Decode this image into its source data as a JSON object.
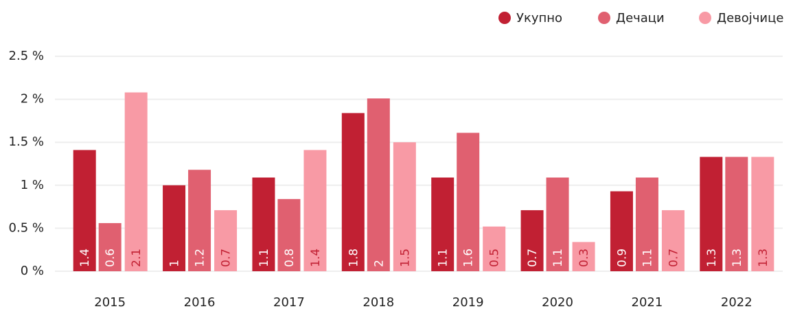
{
  "chart_data": {
    "type": "bar",
    "categories": [
      "2015",
      "2016",
      "2017",
      "2018",
      "2019",
      "2020",
      "2021",
      "2022"
    ],
    "series": [
      {
        "name": "Укупно",
        "color": "#c12033",
        "values": [
          1.41,
          1.0,
          1.09,
          1.84,
          1.09,
          0.71,
          0.93,
          1.33
        ],
        "value_labels": [
          "1.4",
          "1",
          "1.1",
          "1.8",
          "1.1",
          "0.7",
          "0.9",
          "1.3"
        ]
      },
      {
        "name": "Дечаци",
        "color": "#e06070",
        "values": [
          0.56,
          1.18,
          0.84,
          2.01,
          1.61,
          1.09,
          1.09,
          1.33
        ],
        "value_labels": [
          "0.6",
          "1.2",
          "0.8",
          "2",
          "1.6",
          "1.1",
          "1.1",
          "1.3"
        ]
      },
      {
        "name": "Девојчице",
        "color": "#f89aa5",
        "values": [
          2.08,
          0.71,
          1.41,
          1.5,
          0.52,
          0.34,
          0.71,
          1.33
        ],
        "value_labels": [
          "2.1",
          "0.7",
          "1.4",
          "1.5",
          "0.5",
          "0.3",
          "0.7",
          "1.3"
        ]
      }
    ],
    "ylim": [
      0,
      2.5
    ],
    "yticks": [
      {
        "value": 0,
        "label": "0 %"
      },
      {
        "value": 0.5,
        "label": "0.5 %"
      },
      {
        "value": 1,
        "label": "1 %"
      },
      {
        "value": 1.5,
        "label": "1.5 %"
      },
      {
        "value": 2,
        "label": "2 %"
      },
      {
        "value": 2.5,
        "label": "2.5 %"
      }
    ],
    "grid": true,
    "legend": "top-right"
  }
}
